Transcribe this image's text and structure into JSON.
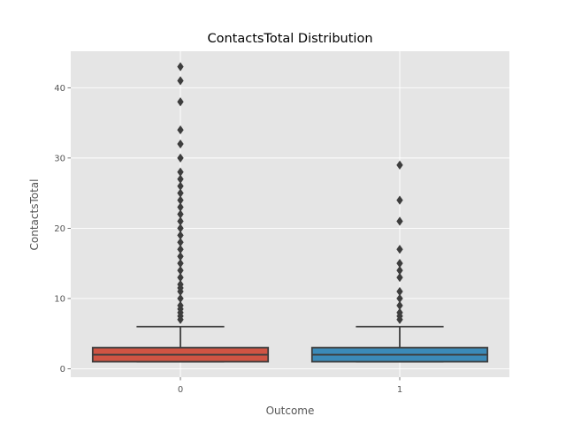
{
  "chart_data": {
    "type": "box",
    "title": "ContactsTotal Distribution",
    "xlabel": "Outcome",
    "ylabel": "ContactsTotal",
    "categories": [
      "0",
      "1"
    ],
    "ylim": [
      -1.2,
      45.2
    ],
    "yticks": [
      0,
      10,
      20,
      30,
      40
    ],
    "grid": true,
    "background": "#e5e5e5",
    "grid_color": "#ffffff",
    "box_colors": [
      "#cf5443",
      "#3b8ab8"
    ],
    "line_color": "#3d3d3d",
    "boxes": [
      {
        "category": "0",
        "q1": 1,
        "median": 2,
        "q3": 3,
        "whisker_low": 1,
        "whisker_high": 6,
        "outliers": [
          7,
          7.5,
          8,
          8.5,
          9,
          10,
          11,
          11.5,
          12,
          13,
          14,
          15,
          16,
          17,
          18,
          19,
          20,
          21,
          22,
          23,
          24,
          25,
          26,
          27,
          28,
          30,
          32,
          34,
          38,
          41,
          43
        ]
      },
      {
        "category": "1",
        "q1": 1,
        "median": 2,
        "q3": 3,
        "whisker_low": 1,
        "whisker_high": 6,
        "outliers": [
          7,
          7.5,
          8,
          9,
          10,
          11,
          13,
          14,
          15,
          17,
          21,
          24,
          29
        ]
      }
    ]
  }
}
